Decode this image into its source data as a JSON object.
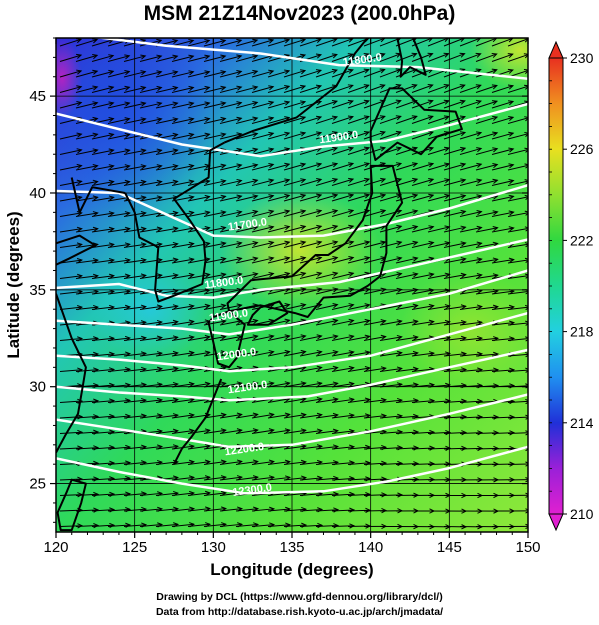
{
  "title": "MSM 21Z14Nov2023 (200.0hPa)",
  "x_axis": {
    "label": "Longitude (degrees)",
    "ticks": [
      "120",
      "125",
      "130",
      "135",
      "140",
      "145",
      "150"
    ]
  },
  "y_axis": {
    "label": "Latitude  (degrees)",
    "ticks": [
      "25",
      "30",
      "35",
      "40",
      "45"
    ]
  },
  "colorbar": {
    "ticks": [
      "210",
      "214",
      "218",
      "222",
      "226",
      "230"
    ]
  },
  "contour_labels": [
    {
      "text": "11800.0",
      "lon": 139.5,
      "lat": 46.7
    },
    {
      "text": "11900.0",
      "lon": 138.0,
      "lat": 42.7
    },
    {
      "text": "11700.0",
      "lon": 132.2,
      "lat": 38.2
    },
    {
      "text": "11800.0",
      "lon": 130.7,
      "lat": 35.2
    },
    {
      "text": "11900.0",
      "lon": 131.0,
      "lat": 33.5
    },
    {
      "text": "12000.0",
      "lon": 131.5,
      "lat": 31.5
    },
    {
      "text": "12100.0",
      "lon": 132.2,
      "lat": 29.8
    },
    {
      "text": "12200.0",
      "lon": 132.0,
      "lat": 26.6
    },
    {
      "text": "12300.0",
      "lon": 132.5,
      "lat": 24.5
    }
  ],
  "footer": {
    "line1": "Drawing by DCL (https://www.gfd-dennou.org/library/dcl/)",
    "line2": "Data from http://database.rish.kyoto-u.ac.jp/arch/jmadata/"
  }
}
